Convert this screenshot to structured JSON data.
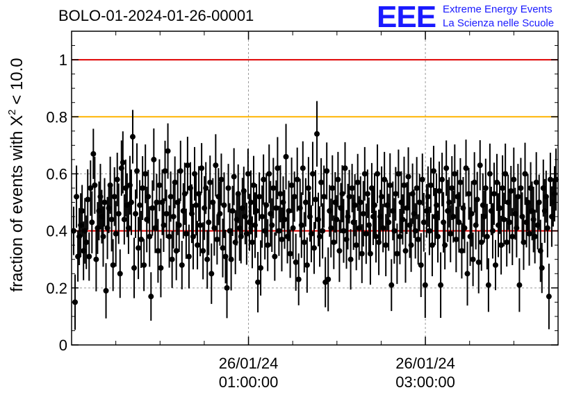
{
  "header": {
    "title": "BOLO-01-2024-01-26-00001"
  },
  "logo": {
    "letters": "EEE",
    "line1": "Extreme Energy Events",
    "line2": "La Scienza nelle Scuole",
    "color": "#1a1aff"
  },
  "chart_data": {
    "type": "scatter",
    "title": "BOLO-01-2024-01-26-00001",
    "ylabel": "fraction of events with X² < 10.0",
    "ylabel_parts": {
      "pre": "fraction of events with X",
      "sup": "2",
      "post": " < 10.0"
    },
    "ylim": [
      0,
      1.1
    ],
    "yticks": [
      0,
      0.2,
      0.4,
      0.6,
      0.8,
      1
    ],
    "ytick_labels": [
      "0",
      "0.2",
      "0.4",
      "0.6",
      "0.8",
      "1"
    ],
    "xlim_hours": [
      0,
      5.5
    ],
    "xticks_major": [
      {
        "hour": 2,
        "date": "26/01/24",
        "time": "01:00:00"
      },
      {
        "hour": 4,
        "date": "26/01/24",
        "time": "03:00:00"
      }
    ],
    "xticks_minor_hours": [
      0.5,
      1,
      1.5,
      2.5,
      3,
      3.5,
      4.5,
      5
    ],
    "grid": true,
    "reference_lines": [
      {
        "y": 1.0,
        "color": "#e00000"
      },
      {
        "y": 0.8,
        "color": "#ffb400"
      },
      {
        "y": 0.4,
        "color": "#e00000"
      }
    ],
    "series": [
      {
        "marker_color": "#000000",
        "values": [
          0.4,
          0.15,
          0.52,
          0.31,
          0.38,
          0.42,
          0.47,
          0.33,
          0.4,
          0.36,
          0.51,
          0.31,
          0.55,
          0.43,
          0.67,
          0.56,
          0.3,
          0.41,
          0.47,
          0.52,
          0.45,
          0.38,
          0.5,
          0.19,
          0.41,
          0.48,
          0.56,
          0.44,
          0.28,
          0.52,
          0.39,
          0.58,
          0.46,
          0.25,
          0.62,
          0.64,
          0.44,
          0.55,
          0.49,
          0.41,
          0.56,
          0.5,
          0.73,
          0.27,
          0.46,
          0.61,
          0.34,
          0.49,
          0.37,
          0.55,
          0.28,
          0.6,
          0.44,
          0.52,
          0.38,
          0.17,
          0.48,
          0.65,
          0.41,
          0.5,
          0.33,
          0.56,
          0.27,
          0.5,
          0.42,
          0.61,
          0.46,
          0.68,
          0.38,
          0.52,
          0.3,
          0.45,
          0.57,
          0.33,
          0.5,
          0.42,
          0.61,
          0.28,
          0.47,
          0.53,
          0.39,
          0.63,
          0.31,
          0.55,
          0.46,
          0.38,
          0.6,
          0.49,
          0.35,
          0.53,
          0.42,
          0.62,
          0.33,
          0.48,
          0.55,
          0.3,
          0.43,
          0.57,
          0.25,
          0.5,
          0.41,
          0.63,
          0.37,
          0.52,
          0.46,
          0.58,
          0.34,
          0.49,
          0.31,
          0.2,
          0.55,
          0.4,
          0.3,
          0.47,
          0.59,
          0.36,
          0.44,
          0.53,
          0.41,
          0.38,
          0.48,
          0.54,
          0.45,
          0.39,
          0.6,
          0.43,
          0.5,
          0.36,
          0.56,
          0.42,
          0.47,
          0.22,
          0.52,
          0.27,
          0.45,
          0.58,
          0.4,
          0.49,
          0.35,
          0.6,
          0.46,
          0.42,
          0.55,
          0.31,
          0.48,
          0.62,
          0.4,
          0.53,
          0.37,
          0.5,
          0.44,
          0.66,
          0.38,
          0.47,
          0.32,
          0.56,
          0.41,
          0.52,
          0.29,
          0.58,
          0.23,
          0.48,
          0.42,
          0.62,
          0.36,
          0.5,
          0.28,
          0.55,
          0.45,
          0.39,
          0.6,
          0.34,
          0.51,
          0.74,
          0.44,
          0.38,
          0.57,
          0.4,
          0.52,
          0.22,
          0.61,
          0.23,
          0.47,
          0.41,
          0.55,
          0.36,
          0.5,
          0.44,
          0.58,
          0.33,
          0.48,
          0.53,
          0.4,
          0.62,
          0.37,
          0.45,
          0.52,
          0.3,
          0.55,
          0.43,
          0.49,
          0.35,
          0.57,
          0.41,
          0.5,
          0.32,
          0.46,
          0.6,
          0.39,
          0.53,
          0.42,
          0.32,
          0.55,
          0.45,
          0.49,
          0.38,
          0.6,
          0.36,
          0.45,
          0.52,
          0.41,
          0.58,
          0.35,
          0.49,
          0.43,
          0.56,
          0.21,
          0.47,
          0.4,
          0.53,
          0.32,
          0.6,
          0.38,
          0.5,
          0.44,
          0.56,
          0.33,
          0.48,
          0.59,
          0.42,
          0.35,
          0.53,
          0.46,
          0.4,
          0.55,
          0.37,
          0.5,
          0.28,
          0.58,
          0.43,
          0.21,
          0.47,
          0.52,
          0.4,
          0.56,
          0.35,
          0.61,
          0.45,
          0.49,
          0.38,
          0.54,
          0.21,
          0.58,
          0.43,
          0.35,
          0.62,
          0.47,
          0.5,
          0.39,
          0.55,
          0.45,
          0.6,
          0.37,
          0.52,
          0.43,
          0.57,
          0.33,
          0.48,
          0.41,
          0.62,
          0.25,
          0.53,
          0.38,
          0.46,
          0.3,
          0.57,
          0.42,
          0.51,
          0.29,
          0.63,
          0.36,
          0.49,
          0.45,
          0.55,
          0.38,
          0.21,
          0.6,
          0.47,
          0.4,
          0.53,
          0.28,
          0.57,
          0.42,
          0.48,
          0.35,
          0.55,
          0.44,
          0.6,
          0.36,
          0.5,
          0.43,
          0.54,
          0.38,
          0.58,
          0.46,
          0.41,
          0.52,
          0.21,
          0.55,
          0.45,
          0.36,
          0.6,
          0.43,
          0.5,
          0.39,
          0.55,
          0.47,
          0.44,
          0.38,
          0.57,
          0.42,
          0.5,
          0.33,
          0.27,
          0.55,
          0.47,
          0.52,
          0.41,
          0.17,
          0.58,
          0.45,
          0.5,
          0.53,
          0.58
        ]
      }
    ]
  }
}
